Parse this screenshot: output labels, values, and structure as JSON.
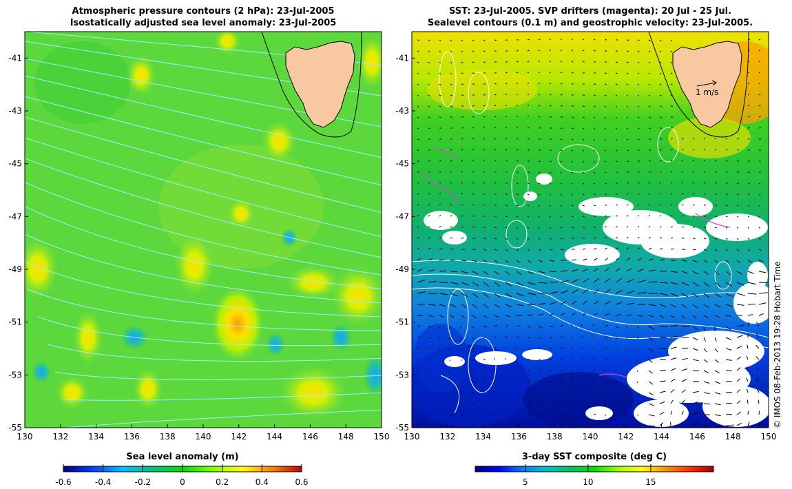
{
  "left_panel": {
    "title_line1": "Atmospheric pressure contours (2 hPa): 23-Jul-2005",
    "title_line2": "Isostatically adjusted sea level anomaly: 23-Jul-2005",
    "colorbar": {
      "label": "Sea level anomaly (m)",
      "min": -0.6,
      "max": 0.6,
      "ticks": [
        "-0.6",
        "-0.4",
        "-0.2",
        "0",
        "0.2",
        "0.4",
        "0.6"
      ],
      "colors": [
        "#000080",
        "#0040ff",
        "#00c0ff",
        "#00c080",
        "#00e000",
        "#80ff00",
        "#ffff00",
        "#ff8000",
        "#c00000"
      ]
    }
  },
  "right_panel": {
    "title_line1": "SST: 23-Jul-2005. SVP drifters (magenta): 20 Jul - 25 Jul.",
    "title_line2": "Sealevel contours (0.1 m) and geostrophic velocity: 23-Jul-2005.",
    "scale_arrow_label": "1 m/s",
    "colorbar": {
      "label": "3-day SST composite (deg C)",
      "min": 1,
      "max": 20,
      "ticks": [
        5,
        10,
        15
      ],
      "colors": [
        "#000080",
        "#0000ff",
        "#0080ff",
        "#00c0c0",
        "#00c060",
        "#00e000",
        "#a0ff00",
        "#ffff00",
        "#ff9000",
        "#ff3000",
        "#a00000"
      ]
    }
  },
  "map_axes": {
    "lon_ticks": [
      "130",
      "132",
      "134",
      "136",
      "138",
      "140",
      "142",
      "144",
      "146",
      "148",
      "150"
    ],
    "lat_ticks": [
      "-41",
      "-43",
      "-45",
      "-47",
      "-49",
      "-51",
      "-53",
      "-55"
    ]
  },
  "credit": "© IMOS 08-Feb-2013 19:28 Hobart Time"
}
